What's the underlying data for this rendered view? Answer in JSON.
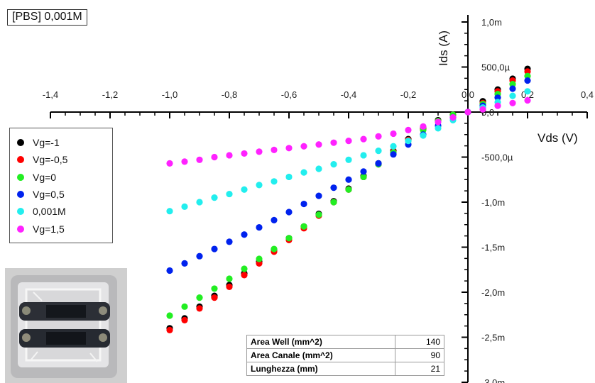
{
  "condition_label": "[PBS] 0,001M",
  "legend_items": [
    {
      "label": "Vg=-1",
      "color": "#000000"
    },
    {
      "label": "Vg=-0,5",
      "color": "#ff0000"
    },
    {
      "label": "Vg=0",
      "color": "#22ee22"
    },
    {
      "label": "Vg=0,5",
      "color": "#0022ee"
    },
    {
      "label": "0,001M",
      "color": "#22eeee"
    },
    {
      "label": "Vg=1,5",
      "color": "#ff22ff"
    }
  ],
  "info_table": [
    {
      "label": "Area Well (mm^2)",
      "value": "140"
    },
    {
      "label": "Area Canale (mm^2)",
      "value": "90"
    },
    {
      "label": "Lunghezza (mm)",
      "value": "21"
    }
  ],
  "chart_data": {
    "type": "scatter",
    "xlabel": "Vds (V)",
    "ylabel": "Ids (A)",
    "xlim": [
      -1.4,
      0.4
    ],
    "ylim": [
      -0.003,
      0.001
    ],
    "x_ticks": [
      {
        "v": -1.4,
        "label": "-1,4"
      },
      {
        "v": -1.2,
        "label": "-1,2"
      },
      {
        "v": -1.0,
        "label": "-1,0"
      },
      {
        "v": -0.8,
        "label": "-0,8"
      },
      {
        "v": -0.6,
        "label": "-0,6"
      },
      {
        "v": -0.4,
        "label": "-0,4"
      },
      {
        "v": -0.2,
        "label": "-0,2"
      },
      {
        "v": 0.0,
        "label": "0,0"
      },
      {
        "v": 0.2,
        "label": "0,2"
      },
      {
        "v": 0.4,
        "label": "0,4"
      }
    ],
    "y_ticks": [
      {
        "v": 0.001,
        "label": "1,0m"
      },
      {
        "v": 0.0005,
        "label": "500,0µ"
      },
      {
        "v": 0.0,
        "label": "0,0"
      },
      {
        "v": -0.0005,
        "label": "-500,0µ"
      },
      {
        "v": -0.001,
        "label": "-1,0m"
      },
      {
        "v": -0.0015,
        "label": "-1,5m"
      },
      {
        "v": -0.002,
        "label": "-2,0m"
      },
      {
        "v": -0.0025,
        "label": "-2,5m"
      },
      {
        "v": -0.003,
        "label": "-3,0m"
      }
    ],
    "x": [
      -1.0,
      -0.95,
      -0.9,
      -0.85,
      -0.8,
      -0.75,
      -0.7,
      -0.65,
      -0.6,
      -0.55,
      -0.5,
      -0.45,
      -0.4,
      -0.35,
      -0.3,
      -0.25,
      -0.2,
      -0.15,
      -0.1,
      -0.05,
      0.0,
      0.05,
      0.1,
      0.15,
      0.2
    ],
    "series": [
      {
        "name": "Vg=-1",
        "color": "#000000",
        "values": [
          -0.0024,
          -0.00229,
          -0.00216,
          -0.00204,
          -0.00192,
          -0.00179,
          -0.00166,
          -0.00153,
          -0.0014,
          -0.00127,
          -0.00113,
          -0.00099,
          -0.00085,
          -0.00071,
          -0.00057,
          -0.00043,
          -0.0003,
          -0.00018,
          -9e-05,
          -3e-05,
          0.0,
          0.00012,
          0.00025,
          0.00037,
          0.00048
        ]
      },
      {
        "name": "Vg=-0,5",
        "color": "#ff0000",
        "values": [
          -0.00242,
          -0.00231,
          -0.00218,
          -0.00206,
          -0.00194,
          -0.00181,
          -0.00168,
          -0.00155,
          -0.00142,
          -0.00129,
          -0.00115,
          -0.001,
          -0.00086,
          -0.00072,
          -0.00058,
          -0.00044,
          -0.00031,
          -0.00019,
          -0.0001,
          -3e-05,
          0.0,
          0.0001,
          0.00023,
          0.00035,
          0.00045
        ]
      },
      {
        "name": "Vg=0",
        "color": "#22ee22",
        "values": [
          -0.00226,
          -0.00216,
          -0.00206,
          -0.00196,
          -0.00185,
          -0.00174,
          -0.00163,
          -0.00152,
          -0.0014,
          -0.00127,
          -0.00114,
          -0.001,
          -0.00086,
          -0.00072,
          -0.00058,
          -0.00045,
          -0.00032,
          -0.0002,
          -0.0001,
          -3e-05,
          0.0,
          9e-05,
          0.0002,
          0.00031,
          0.0004
        ]
      },
      {
        "name": "Vg=0,5",
        "color": "#0022ee",
        "values": [
          -0.00176,
          -0.00168,
          -0.0016,
          -0.00152,
          -0.00144,
          -0.00136,
          -0.00128,
          -0.0012,
          -0.00111,
          -0.00102,
          -0.00093,
          -0.00084,
          -0.00075,
          -0.00066,
          -0.00057,
          -0.00047,
          -0.00036,
          -0.00025,
          -0.00015,
          -6e-05,
          0.0,
          7e-05,
          0.00016,
          0.00026,
          0.00035
        ]
      },
      {
        "name": "0,001M",
        "color": "#22eeee",
        "values": [
          -0.0011,
          -0.00105,
          -0.001,
          -0.00095,
          -0.00091,
          -0.00086,
          -0.00081,
          -0.00077,
          -0.00072,
          -0.00067,
          -0.00063,
          -0.00058,
          -0.00053,
          -0.00048,
          -0.00043,
          -0.00038,
          -0.00032,
          -0.00026,
          -0.00018,
          -9e-05,
          0.0,
          5e-05,
          0.00011,
          0.00018,
          0.00023
        ]
      },
      {
        "name": "Vg=1,5",
        "color": "#ff22ff",
        "values": [
          -0.00057,
          -0.00055,
          -0.00053,
          -0.0005,
          -0.00048,
          -0.00046,
          -0.00044,
          -0.00042,
          -0.0004,
          -0.00038,
          -0.00036,
          -0.00034,
          -0.00032,
          -0.0003,
          -0.00027,
          -0.00024,
          -0.0002,
          -0.00016,
          -0.00011,
          -6e-05,
          0.0,
          3e-05,
          7e-05,
          0.0001,
          0.00013
        ]
      }
    ]
  }
}
